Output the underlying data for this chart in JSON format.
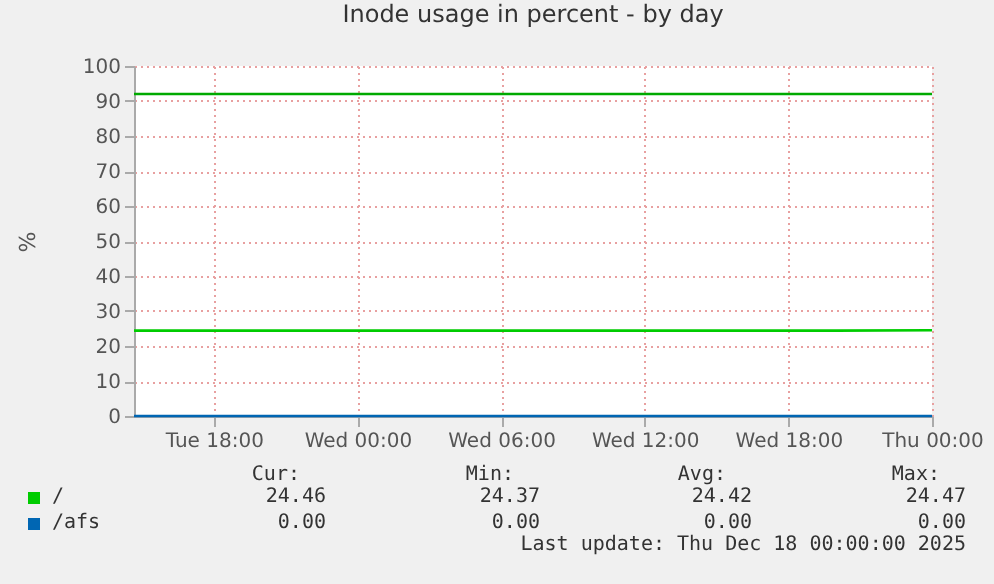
{
  "chart_data": {
    "type": "line",
    "title": "Inode usage in percent - by day",
    "ylabel": "%",
    "x": [
      "2025-12-16T14:40",
      "2025-12-16T20:00",
      "2025-12-17T02:00",
      "2025-12-17T08:00",
      "2025-12-17T14:00",
      "2025-12-17T20:00",
      "2025-12-18T00:00"
    ],
    "series": [
      {
        "name": "/",
        "color": "#00cc00",
        "values": [
          24.4,
          24.4,
          24.4,
          24.4,
          24.4,
          24.4,
          24.5
        ]
      },
      {
        "name": "/afs",
        "color": "#0066b3",
        "values": [
          0,
          0,
          0,
          0,
          0,
          0,
          0
        ]
      }
    ],
    "xlim": [
      "2025-12-16T14:40",
      "2025-12-18T00:00"
    ],
    "xticks": [
      {
        "value": "2025-12-16T18:00",
        "label": "Tue 18:00"
      },
      {
        "value": "2025-12-17T00:00",
        "label": "Wed 00:00"
      },
      {
        "value": "2025-12-17T06:00",
        "label": "Wed 06:00"
      },
      {
        "value": "2025-12-17T12:00",
        "label": "Wed 12:00"
      },
      {
        "value": "2025-12-17T18:00",
        "label": "Wed 18:00"
      },
      {
        "value": "2025-12-18T00:00",
        "label": "Thu 00:00"
      }
    ],
    "ylim": [
      0,
      100
    ],
    "yticks": [
      0,
      10,
      20,
      30,
      40,
      50,
      60,
      70,
      80,
      90,
      100
    ],
    "ref_lines": [
      {
        "axis": "y",
        "value": 92,
        "color": "#00aa00"
      }
    ],
    "grid": true,
    "legend": "bottom",
    "annotations": [
      "Cur:",
      "Min:",
      "Avg:",
      "Max:",
      "24.46",
      "24.37",
      "24.42",
      "24.47",
      "0.00",
      "0.00",
      "0.00",
      "0.00",
      "Last update: Thu Dec 18 00:00:00 2025"
    ]
  }
}
